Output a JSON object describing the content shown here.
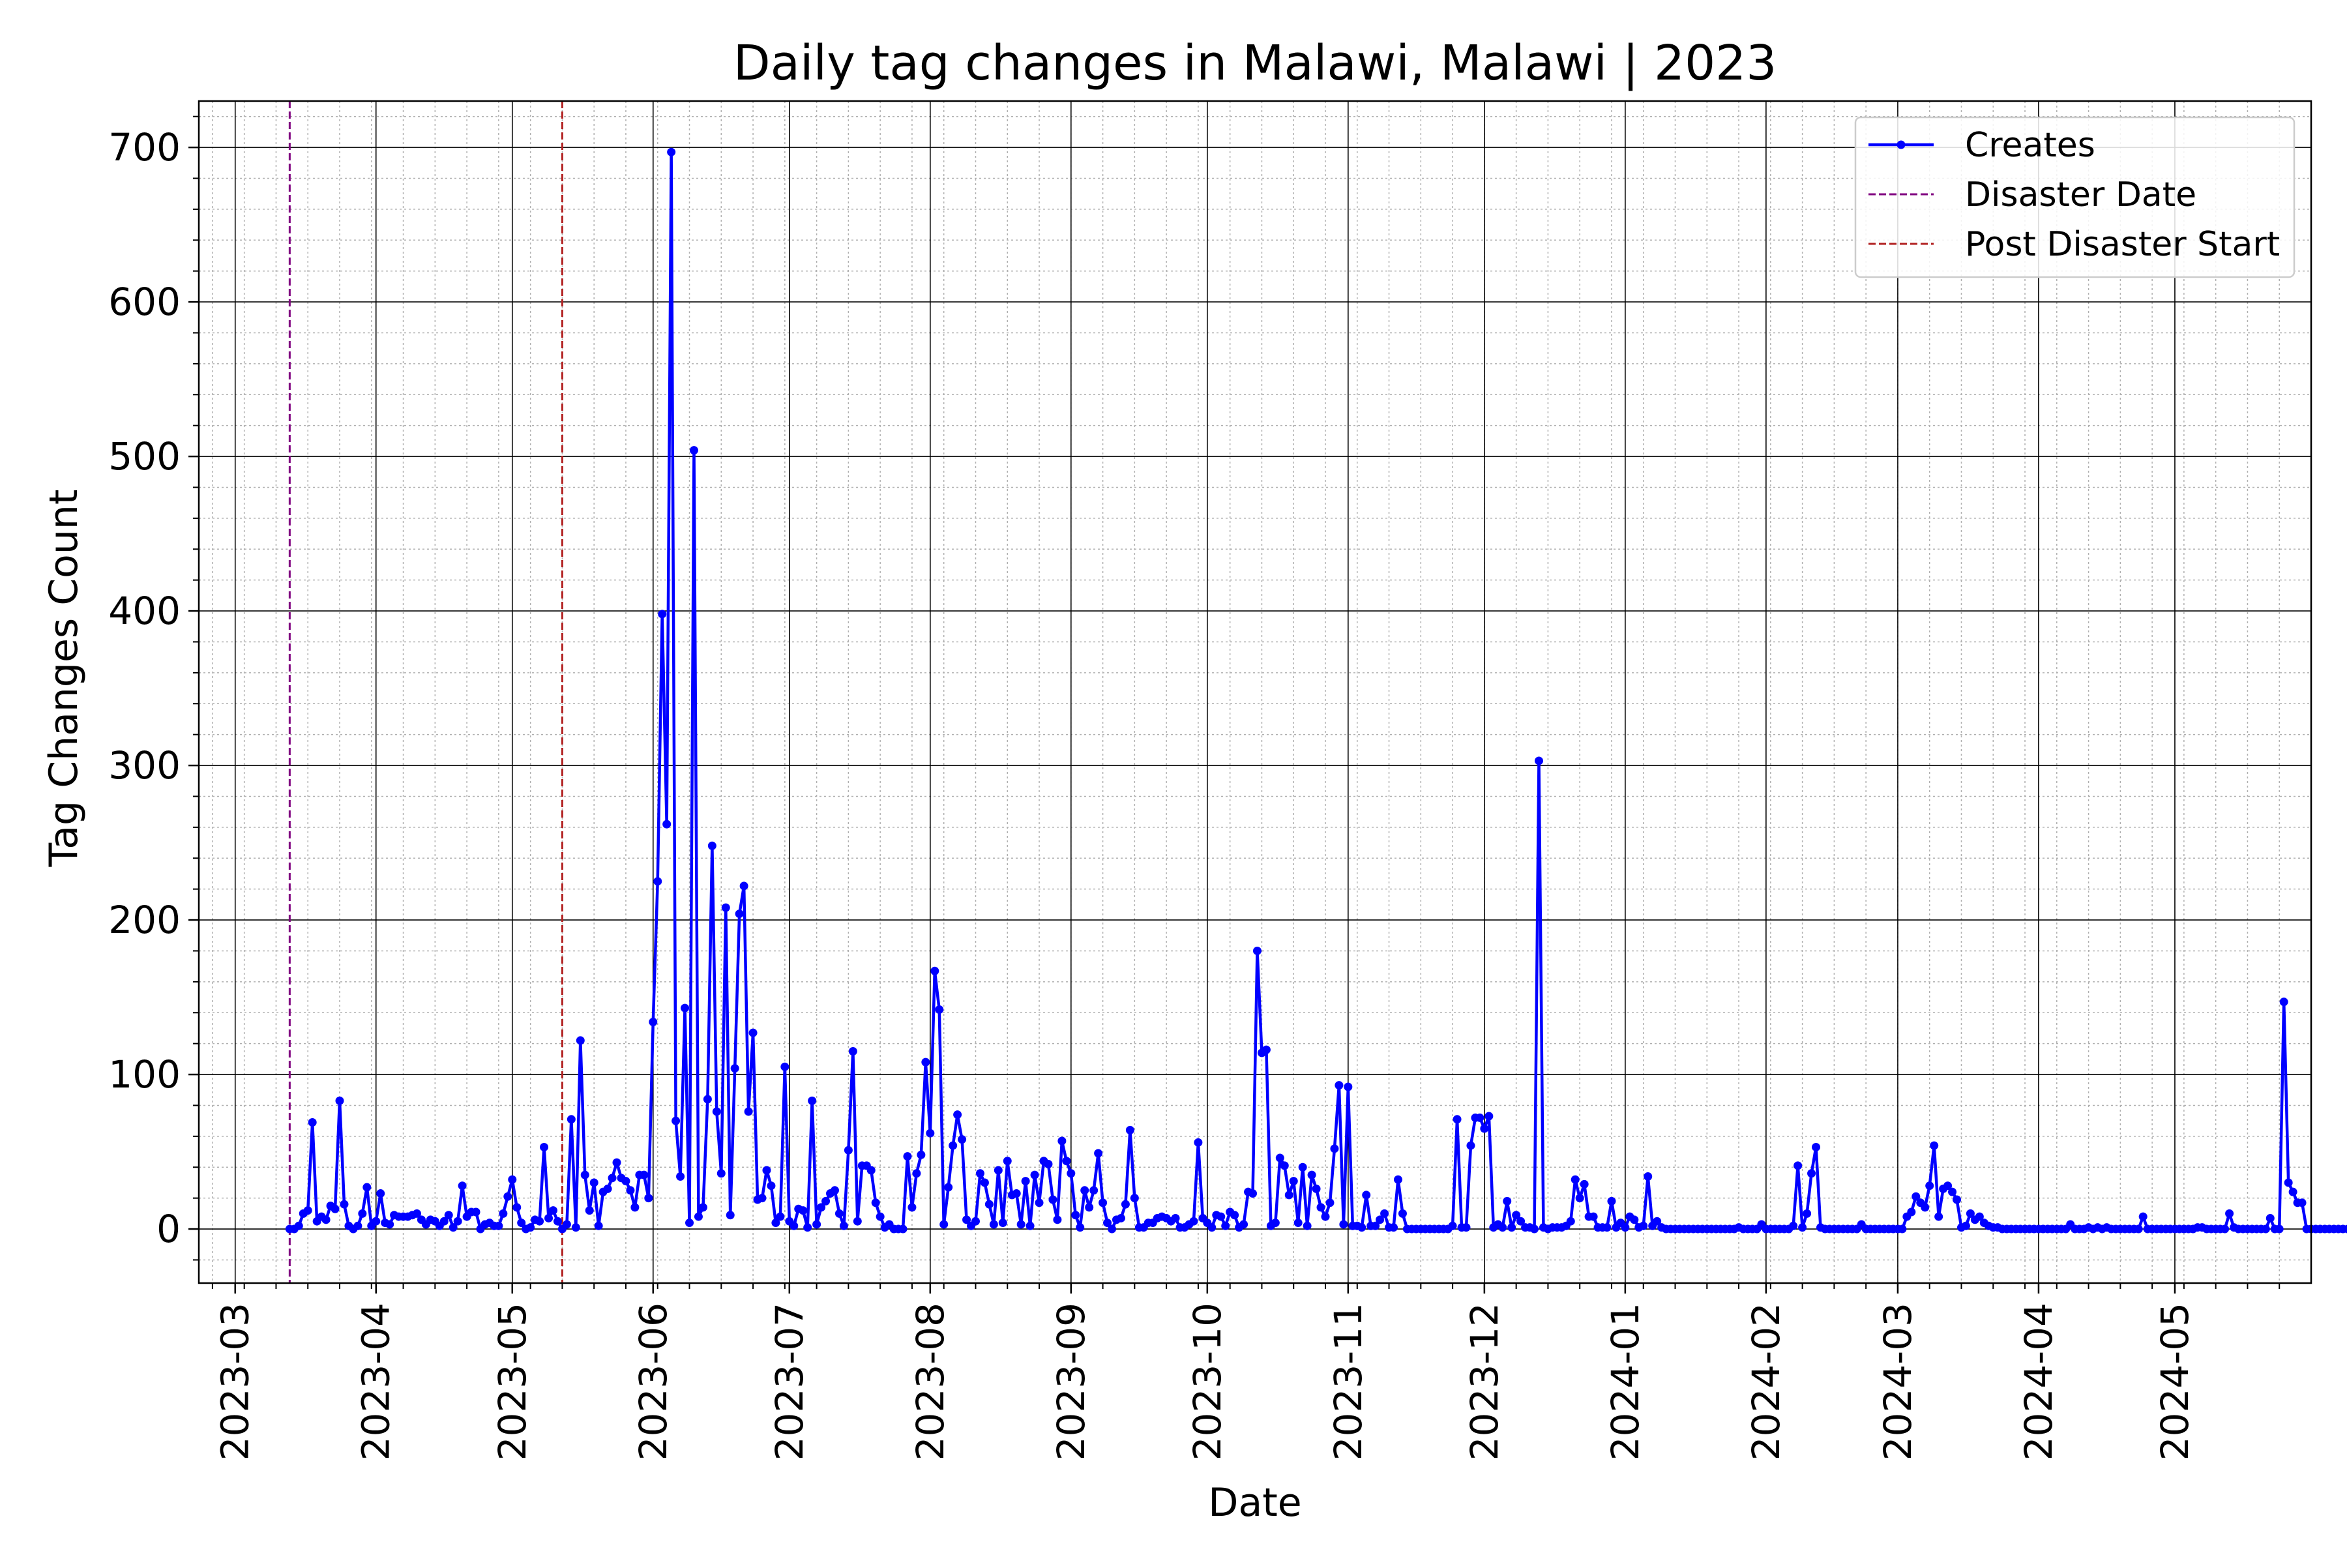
{
  "chart_data": {
    "type": "line",
    "title": "Daily tag changes in Malawi, Malawi | 2023",
    "xlabel": "Date",
    "ylabel": "Tag Changes Count",
    "xlim": [
      "2023-02-21",
      "2024-05-31"
    ],
    "ylim": [
      -35,
      730
    ],
    "x_ticks": [
      "2023-03",
      "2023-04",
      "2023-05",
      "2023-06",
      "2023-07",
      "2023-08",
      "2023-09",
      "2023-10",
      "2023-11",
      "2023-12",
      "2024-01",
      "2024-02",
      "2024-03",
      "2024-04",
      "2024-05"
    ],
    "y_ticks": [
      0,
      100,
      200,
      300,
      400,
      500,
      600,
      700
    ],
    "grid": true,
    "legend_position": "upper right",
    "series": [
      {
        "name": "Creates",
        "color": "#0000ff",
        "marker": "circle",
        "start_date": "2023-03-13",
        "y": [
          0,
          0,
          2,
          10,
          12,
          69,
          5,
          8,
          6,
          15,
          13,
          83,
          16,
          2,
          0,
          2,
          10,
          27,
          2,
          5,
          23,
          4,
          3,
          9,
          8,
          8,
          8,
          9,
          10,
          6,
          3,
          6,
          5,
          2,
          5,
          9,
          1,
          5,
          28,
          8,
          11,
          11,
          0,
          3,
          4,
          2,
          2,
          10,
          21,
          32,
          14,
          4,
          0,
          1,
          6,
          5,
          53,
          7,
          12,
          5,
          0,
          3,
          71,
          1,
          122,
          35,
          12,
          30,
          2,
          24,
          26,
          33,
          43,
          33,
          31,
          25,
          14,
          35,
          35,
          20,
          134,
          225,
          398,
          262,
          697,
          70,
          34,
          143,
          4,
          504,
          8,
          14,
          84,
          248,
          76,
          36,
          208,
          9,
          104,
          204,
          222,
          76,
          127,
          19,
          20,
          38,
          28,
          4,
          8,
          105,
          5,
          2,
          13,
          12,
          1,
          83,
          3,
          14,
          18,
          23,
          25,
          10,
          2,
          51,
          115,
          5,
          41,
          41,
          38,
          17,
          8,
          1,
          3,
          0,
          0,
          0,
          47,
          14,
          36,
          48,
          108,
          62,
          167,
          142,
          3,
          27,
          54,
          74,
          58,
          6,
          2,
          5,
          36,
          30,
          16,
          3,
          38,
          4,
          44,
          22,
          23,
          3,
          31,
          2,
          35,
          17,
          44,
          42,
          19,
          6,
          57,
          44,
          36,
          9,
          1,
          25,
          14,
          25,
          49,
          17,
          4,
          0,
          6,
          7,
          16,
          64,
          20,
          1,
          1,
          4,
          4,
          7,
          8,
          7,
          5,
          7,
          1,
          1,
          3,
          5,
          56,
          7,
          4,
          1,
          9,
          8,
          2,
          11,
          9,
          1,
          3,
          24,
          23,
          180,
          114,
          116,
          2,
          4,
          46,
          41,
          22,
          31,
          4,
          40,
          2,
          35,
          26,
          14,
          8,
          17,
          52,
          93,
          3,
          92,
          2,
          2,
          1,
          22,
          2,
          2,
          6,
          10,
          1,
          1,
          32,
          10,
          0,
          0,
          0,
          0,
          0,
          0,
          0,
          0,
          0,
          0,
          2,
          71,
          1,
          1,
          54,
          72,
          72,
          65,
          73,
          1,
          3,
          1,
          18,
          1,
          9,
          5,
          1,
          1,
          0,
          303,
          1,
          0,
          1,
          1,
          1,
          2,
          5,
          32,
          20,
          29,
          8,
          8,
          1,
          1,
          1,
          18,
          1,
          4,
          1,
          8,
          6,
          1,
          2,
          34,
          2,
          5,
          1,
          0,
          0,
          0,
          0,
          0,
          0,
          0,
          0,
          0,
          0,
          0,
          0,
          0,
          0,
          0,
          0,
          1,
          0,
          0,
          0,
          0,
          3,
          0,
          0,
          0,
          0,
          0,
          0,
          2,
          41,
          1,
          10,
          36,
          53,
          1,
          0,
          0,
          0,
          0,
          0,
          0,
          0,
          0,
          3,
          0,
          0,
          0,
          0,
          0,
          0,
          0,
          0,
          0,
          8,
          11,
          21,
          17,
          14,
          28,
          54,
          8,
          26,
          28,
          24,
          19,
          1,
          2,
          10,
          6,
          8,
          4,
          2,
          1,
          1,
          0,
          0,
          0,
          0,
          0,
          0,
          0,
          0,
          0,
          0,
          0,
          0,
          0,
          0,
          0,
          3,
          0,
          0,
          0,
          1,
          0,
          1,
          0,
          1,
          0,
          0,
          0,
          0,
          0,
          0,
          0,
          8,
          0,
          0,
          0,
          0,
          0,
          0,
          0,
          0,
          0,
          0,
          0,
          1,
          1,
          0,
          0,
          0,
          0,
          0,
          10,
          1,
          0,
          0,
          0,
          0,
          0,
          0,
          0,
          7,
          0,
          0,
          147,
          30,
          24,
          17,
          17,
          0,
          0,
          0,
          0,
          0,
          0,
          0,
          0,
          0,
          0,
          0,
          0,
          0,
          0,
          0,
          0,
          0,
          0,
          0,
          0,
          0,
          0,
          0,
          0,
          0,
          0,
          0
        ]
      },
      {
        "name": "Disaster Date",
        "color": "#800080",
        "linestyle": "dashed",
        "x": "2023-03-13"
      },
      {
        "name": "Post Disaster Start",
        "color": "#b22222",
        "linestyle": "dashed",
        "x": "2023-05-12"
      }
    ]
  }
}
